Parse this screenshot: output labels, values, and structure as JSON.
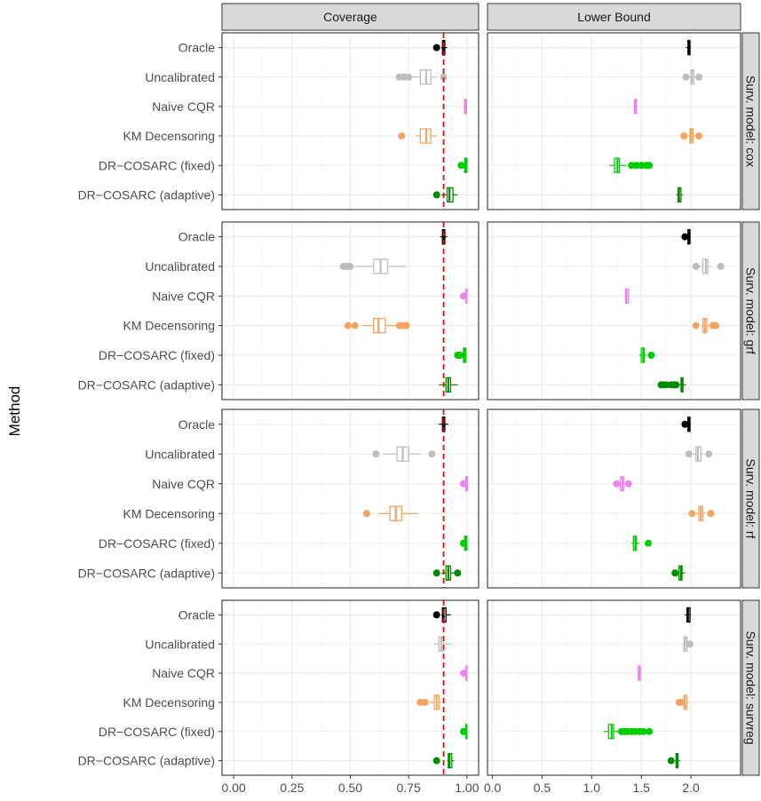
{
  "chart_data": {
    "type": "boxplot",
    "ylabel": "Method",
    "xlabel": "",
    "columns": [
      "Coverage",
      "Lower Bound"
    ],
    "rows": [
      "Surv. model: cox",
      "Surv. model: grf",
      "Surv. model: rf",
      "Surv. model: survreg"
    ],
    "methods": [
      "Oracle",
      "Uncalibrated",
      "Naive CQR",
      "KM Decensoring",
      "DR−COSARC (fixed)",
      "DR−COSARC (adaptive)"
    ],
    "method_colors": [
      "#000000",
      "#bebebe",
      "#ee82ee",
      "#f4a460",
      "#00cd00",
      "#008b00"
    ],
    "axes": {
      "Coverage": {
        "xlim": [
          -0.05,
          1.05
        ],
        "ticks": [
          0.0,
          0.25,
          0.5,
          0.75,
          1.0
        ],
        "tick_labels": [
          "0.00",
          "0.25",
          "0.50",
          "0.75",
          "1.00"
        ],
        "reference_line": 0.9
      },
      "Lower Bound": {
        "xlim": [
          -0.05,
          2.5
        ],
        "ticks": [
          0.0,
          0.5,
          1.0,
          1.5,
          2.0
        ],
        "tick_labels": [
          "0.0",
          "0.5",
          "1.0",
          "1.5",
          "2.0"
        ]
      }
    },
    "panels": {
      "Surv. model: cox": {
        "Coverage": [
          {
            "method": "Oracle",
            "min": 0.89,
            "q1": 0.895,
            "median": 0.9,
            "q3": 0.905,
            "max": 0.915,
            "outliers": [
              0.87
            ]
          },
          {
            "method": "Uncalibrated",
            "min": 0.76,
            "q1": 0.8,
            "median": 0.825,
            "q3": 0.845,
            "max": 0.87,
            "outliers": [
              0.71,
              0.73,
              0.75,
              0.9
            ]
          },
          {
            "method": "Naive CQR",
            "min": 0.985,
            "q1": 0.99,
            "median": 0.995,
            "q3": 0.998,
            "max": 1.0,
            "outliers": []
          },
          {
            "method": "KM Decensoring",
            "min": 0.78,
            "q1": 0.8,
            "median": 0.825,
            "q3": 0.845,
            "max": 0.87,
            "outliers": [
              0.72
            ]
          },
          {
            "method": "DR−COSARC (fixed)",
            "min": 0.98,
            "q1": 0.99,
            "median": 0.995,
            "q3": 1.0,
            "max": 1.0,
            "outliers": [
              0.975
            ]
          },
          {
            "method": "DR−COSARC (adaptive)",
            "min": 0.89,
            "q1": 0.915,
            "median": 0.925,
            "q3": 0.94,
            "max": 0.96,
            "outliers": [
              0.87
            ]
          }
        ],
        "Lower Bound": [
          {
            "method": "Oracle",
            "min": 1.95,
            "q1": 1.97,
            "median": 1.98,
            "q3": 1.99,
            "max": 2.0,
            "outliers": []
          },
          {
            "method": "Uncalibrated",
            "min": 1.98,
            "q1": 2.0,
            "median": 2.01,
            "q3": 2.03,
            "max": 2.05,
            "outliers": [
              1.95,
              2.08
            ]
          },
          {
            "method": "Naive CQR",
            "min": 1.42,
            "q1": 1.43,
            "median": 1.44,
            "q3": 1.45,
            "max": 1.47,
            "outliers": []
          },
          {
            "method": "KM Decensoring",
            "min": 1.97,
            "q1": 1.99,
            "median": 2.0,
            "q3": 2.02,
            "max": 2.05,
            "outliers": [
              1.93,
              2.08
            ]
          },
          {
            "method": "DR−COSARC (fixed)",
            "min": 1.18,
            "q1": 1.23,
            "median": 1.26,
            "q3": 1.28,
            "max": 1.35,
            "outliers": [
              1.4,
              1.45,
              1.5,
              1.55,
              1.58
            ]
          },
          {
            "method": "DR−COSARC (adaptive)",
            "min": 1.85,
            "q1": 1.87,
            "median": 1.88,
            "q3": 1.9,
            "max": 1.92,
            "outliers": []
          }
        ]
      },
      "Surv. model: grf": {
        "Coverage": [
          {
            "method": "Oracle",
            "min": 0.885,
            "q1": 0.895,
            "median": 0.9,
            "q3": 0.905,
            "max": 0.915,
            "outliers": []
          },
          {
            "method": "Uncalibrated",
            "min": 0.52,
            "q1": 0.6,
            "median": 0.63,
            "q3": 0.66,
            "max": 0.74,
            "outliers": [
              0.47,
              0.48,
              0.49,
              0.5
            ]
          },
          {
            "method": "Naive CQR",
            "min": 0.99,
            "q1": 0.995,
            "median": 0.997,
            "q3": 1.0,
            "max": 1.0,
            "outliers": [
              0.985
            ]
          },
          {
            "method": "KM Decensoring",
            "min": 0.55,
            "q1": 0.6,
            "median": 0.62,
            "q3": 0.65,
            "max": 0.7,
            "outliers": [
              0.49,
              0.52,
              0.71,
              0.72,
              0.73,
              0.74
            ]
          },
          {
            "method": "DR−COSARC (fixed)",
            "min": 0.975,
            "q1": 0.985,
            "median": 0.99,
            "q3": 0.995,
            "max": 1.0,
            "outliers": [
              0.96,
              0.965,
              0.97
            ]
          },
          {
            "method": "DR−COSARC (adaptive)",
            "min": 0.88,
            "q1": 0.91,
            "median": 0.92,
            "q3": 0.93,
            "max": 0.96,
            "outliers": []
          }
        ],
        "Lower Bound": [
          {
            "method": "Oracle",
            "min": 1.95,
            "q1": 1.97,
            "median": 1.98,
            "q3": 1.99,
            "max": 2.0,
            "outliers": [
              1.94
            ]
          },
          {
            "method": "Uncalibrated",
            "min": 2.08,
            "q1": 2.12,
            "median": 2.15,
            "q3": 2.17,
            "max": 2.2,
            "outliers": [
              2.05,
              2.3
            ]
          },
          {
            "method": "Naive CQR",
            "min": 1.33,
            "q1": 1.34,
            "median": 1.35,
            "q3": 1.37,
            "max": 1.38,
            "outliers": []
          },
          {
            "method": "KM Decensoring",
            "min": 2.1,
            "q1": 2.12,
            "median": 2.14,
            "q3": 2.16,
            "max": 2.2,
            "outliers": [
              2.05,
              2.22,
              2.25
            ]
          },
          {
            "method": "DR−COSARC (fixed)",
            "min": 1.48,
            "q1": 1.5,
            "median": 1.52,
            "q3": 1.53,
            "max": 1.55,
            "outliers": [
              1.6
            ]
          },
          {
            "method": "DR−COSARC (adaptive)",
            "min": 1.88,
            "q1": 1.9,
            "median": 1.91,
            "q3": 1.92,
            "max": 1.95,
            "outliers": [
              1.7,
              1.72,
              1.75,
              1.8,
              1.83,
              1.85
            ]
          }
        ]
      },
      "Surv. model: rf": {
        "Coverage": [
          {
            "method": "Oracle",
            "min": 0.88,
            "q1": 0.895,
            "median": 0.9,
            "q3": 0.905,
            "max": 0.92,
            "outliers": []
          },
          {
            "method": "Uncalibrated",
            "min": 0.64,
            "q1": 0.7,
            "median": 0.725,
            "q3": 0.75,
            "max": 0.8,
            "outliers": [
              0.61,
              0.85
            ]
          },
          {
            "method": "Naive CQR",
            "min": 0.99,
            "q1": 0.995,
            "median": 1.0,
            "q3": 1.0,
            "max": 1.0,
            "outliers": [
              0.985
            ]
          },
          {
            "method": "KM Decensoring",
            "min": 0.62,
            "q1": 0.67,
            "median": 0.695,
            "q3": 0.72,
            "max": 0.79,
            "outliers": [
              0.57
            ]
          },
          {
            "method": "DR−COSARC (fixed)",
            "min": 0.98,
            "q1": 0.99,
            "median": 0.995,
            "q3": 1.0,
            "max": 1.0,
            "outliers": [
              0.985
            ]
          },
          {
            "method": "DR−COSARC (adaptive)",
            "min": 0.89,
            "q1": 0.91,
            "median": 0.92,
            "q3": 0.93,
            "max": 0.95,
            "outliers": [
              0.87,
              0.96
            ]
          }
        ],
        "Lower Bound": [
          {
            "method": "Oracle",
            "min": 1.95,
            "q1": 1.97,
            "median": 1.98,
            "q3": 1.99,
            "max": 2.0,
            "outliers": [
              1.94
            ]
          },
          {
            "method": "Uncalibrated",
            "min": 2.02,
            "q1": 2.05,
            "median": 2.07,
            "q3": 2.1,
            "max": 2.13,
            "outliers": [
              1.98,
              2.18
            ]
          },
          {
            "method": "Naive CQR",
            "min": 1.27,
            "q1": 1.29,
            "median": 1.31,
            "q3": 1.32,
            "max": 1.35,
            "outliers": [
              1.25,
              1.37
            ]
          },
          {
            "method": "KM Decensoring",
            "min": 2.05,
            "q1": 2.08,
            "median": 2.1,
            "q3": 2.12,
            "max": 2.15,
            "outliers": [
              2.01,
              2.2
            ]
          },
          {
            "method": "DR−COSARC (fixed)",
            "min": 1.4,
            "q1": 1.42,
            "median": 1.44,
            "q3": 1.45,
            "max": 1.48,
            "outliers": [
              1.57
            ]
          },
          {
            "method": "DR−COSARC (adaptive)",
            "min": 1.86,
            "q1": 1.88,
            "median": 1.9,
            "q3": 1.91,
            "max": 1.94,
            "outliers": [
              1.84
            ]
          }
        ]
      },
      "Surv. model: survreg": {
        "Coverage": [
          {
            "method": "Oracle",
            "min": 0.89,
            "q1": 0.895,
            "median": 0.9,
            "q3": 0.91,
            "max": 0.93,
            "outliers": [
              0.87
            ]
          },
          {
            "method": "Uncalibrated",
            "min": 0.86,
            "q1": 0.88,
            "median": 0.89,
            "q3": 0.9,
            "max": 0.93,
            "outliers": []
          },
          {
            "method": "Naive CQR",
            "min": 0.99,
            "q1": 0.995,
            "median": 0.998,
            "q3": 1.0,
            "max": 1.0,
            "outliers": [
              0.985
            ]
          },
          {
            "method": "KM Decensoring",
            "min": 0.84,
            "q1": 0.86,
            "median": 0.87,
            "q3": 0.88,
            "max": 0.89,
            "outliers": [
              0.8,
              0.82
            ]
          },
          {
            "method": "DR−COSARC (fixed)",
            "min": 0.99,
            "q1": 0.995,
            "median": 0.998,
            "q3": 1.0,
            "max": 1.0,
            "outliers": [
              0.985
            ]
          },
          {
            "method": "DR−COSARC (adaptive)",
            "min": 0.915,
            "q1": 0.92,
            "median": 0.925,
            "q3": 0.935,
            "max": 0.945,
            "outliers": [
              0.87
            ]
          }
        ],
        "Lower Bound": [
          {
            "method": "Oracle",
            "min": 1.94,
            "q1": 1.96,
            "median": 1.97,
            "q3": 1.99,
            "max": 2.0,
            "outliers": []
          },
          {
            "method": "Uncalibrated",
            "min": 1.92,
            "q1": 1.93,
            "median": 1.94,
            "q3": 1.96,
            "max": 1.98,
            "outliers": [
              1.99
            ]
          },
          {
            "method": "Naive CQR",
            "min": 1.46,
            "q1": 1.47,
            "median": 1.48,
            "q3": 1.49,
            "max": 1.5,
            "outliers": []
          },
          {
            "method": "KM Decensoring",
            "min": 1.92,
            "q1": 1.93,
            "median": 1.94,
            "q3": 1.96,
            "max": 1.98,
            "outliers": [
              1.88,
              1.9
            ]
          },
          {
            "method": "DR−COSARC (fixed)",
            "min": 1.12,
            "q1": 1.17,
            "median": 1.2,
            "q3": 1.22,
            "max": 1.28,
            "outliers": [
              1.3,
              1.33,
              1.36,
              1.4,
              1.44,
              1.48,
              1.52,
              1.58
            ]
          },
          {
            "method": "DR−COSARC (adaptive)",
            "min": 1.84,
            "q1": 1.85,
            "median": 1.86,
            "q3": 1.87,
            "max": 1.89,
            "outliers": [
              1.8
            ]
          }
        ]
      }
    }
  }
}
